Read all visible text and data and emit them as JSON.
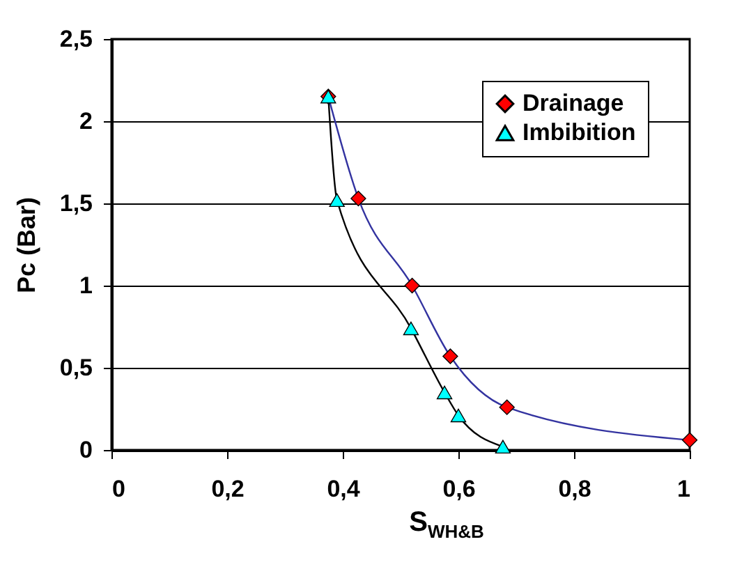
{
  "chart_data": {
    "type": "line",
    "xlabel": "S$_{WH&B}$",
    "ylabel": "Pc (Bar)",
    "xlim": [
      0,
      1
    ],
    "xticks": [
      {
        "value": 0,
        "label": "0"
      },
      {
        "value": 0.2,
        "label": "0,2"
      },
      {
        "value": 0.4,
        "label": "0,4"
      },
      {
        "value": 0.6,
        "label": "0,6"
      },
      {
        "value": 0.8,
        "label": "0,8"
      },
      {
        "value": 1,
        "label": "1"
      }
    ],
    "ylim": [
      0,
      2.5
    ],
    "yticks": [
      {
        "value": 0,
        "label": "0"
      },
      {
        "value": 0.5,
        "label": "0,5"
      },
      {
        "value": 1,
        "label": "1"
      },
      {
        "value": 1.5,
        "label": "1,5"
      },
      {
        "value": 2,
        "label": "2"
      },
      {
        "value": 2.5,
        "label": "2,5"
      }
    ],
    "grid": "y",
    "legend": "top right",
    "line_style": "solid",
    "series": [
      {
        "name": "Drainage",
        "color": "#ff0000",
        "marker": "diamond",
        "x": [
          0.375,
          0.427,
          0.52,
          0.586,
          0.684,
          1.0
        ],
        "values": [
          2.15,
          1.53,
          1.0,
          0.57,
          0.26,
          0.06
        ]
      },
      {
        "name": "Imbibition",
        "color": "#00ffff",
        "marker": "triangle",
        "x": [
          0.375,
          0.39,
          0.518,
          0.576,
          0.6,
          0.677
        ],
        "values": [
          2.15,
          1.52,
          0.74,
          0.35,
          0.21,
          0.02
        ]
      }
    ]
  }
}
